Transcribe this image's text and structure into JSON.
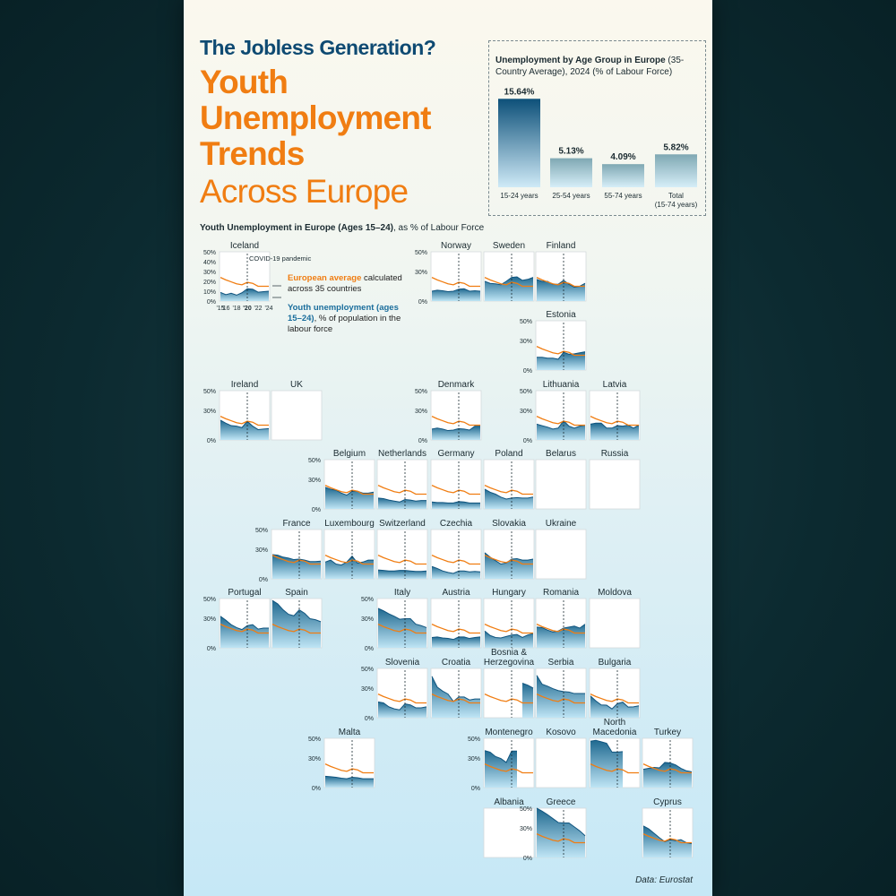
{
  "header": {
    "title": "The Jobless Generation?",
    "headline_lines": [
      "Youth",
      "Unemployment",
      "Trends"
    ],
    "headline_sub": "Across Europe"
  },
  "age_chart": {
    "title_bold": "Unemployment by Age Group in Europe",
    "title_rest": " (35-Country Average), 2024 (% of Labour Force)"
  },
  "map": {
    "title_bold": "Youth Unemployment in Europe",
    "title_paren": " (Ages 15–24)",
    "title_rest": ", as % of Labour Force",
    "covid_label": "COVID-19 pandemic",
    "legend_orange_bold": "European average",
    "legend_orange_rest": " calculated across 35 countries",
    "legend_blue_bold": "Youth unemployment (ages 15–24)",
    "legend_blue_rest": ", % of population in the labour force"
  },
  "credit": "Data: Eurostat",
  "colors": {
    "orange": "#f07d12",
    "navy": "#0e4a72",
    "area_top": "#1f6990",
    "area_bottom": "#bfe5f5"
  },
  "chart_data": [
    {
      "type": "bar",
      "title": "Unemployment by Age Group in Europe (35-Country Average), 2024 (% of Labour Force)",
      "categories": [
        "15-24 years",
        "25-54 years",
        "55-74 years",
        "Total (15-74 years)"
      ],
      "category_lines": [
        [
          "15-24 years"
        ],
        [
          "25-54 years"
        ],
        [
          "55-74 years"
        ],
        [
          "Total",
          "(15-74 years)"
        ]
      ],
      "values": [
        15.64,
        5.13,
        4.09,
        5.82
      ],
      "value_labels": [
        "15.64%",
        "5.13%",
        "4.09%",
        "5.82%"
      ],
      "ylim": [
        0,
        16
      ]
    },
    {
      "type": "area",
      "title": "Youth Unemployment in Europe (Ages 15–24), as % of Labour Force",
      "x": [
        2015,
        2016,
        2017,
        2018,
        2019,
        2020,
        2021,
        2022,
        2023,
        2024
      ],
      "x_tick_labels": [
        "'15",
        "'16",
        "'18",
        "'20",
        "'22",
        "'24"
      ],
      "y_tick_labels": [
        "50%",
        "40%",
        "30%",
        "20%",
        "10%",
        "0%"
      ],
      "y_tick_labels_short": [
        "50%",
        "30%",
        "0%"
      ],
      "ylim": [
        0,
        50
      ],
      "covid_year": 2020,
      "european_average": [
        24.0,
        21.5,
        19.5,
        17.5,
        16.5,
        19.0,
        18.0,
        15.0,
        15.0,
        15.0
      ],
      "countries": [
        {
          "name": "Iceland",
          "values": [
            8.8,
            6.5,
            7.9,
            6.0,
            8.4,
            12.5,
            12.0,
            9.0,
            9.5,
            10.0
          ]
        },
        {
          "name": "Norway",
          "values": [
            10.0,
            11.0,
            10.5,
            9.5,
            10.0,
            12.0,
            12.5,
            10.0,
            10.5,
            10.0
          ]
        },
        {
          "name": "Sweden",
          "values": [
            20.0,
            18.0,
            17.5,
            16.5,
            20.0,
            24.0,
            24.5,
            21.0,
            22.0,
            24.0
          ]
        },
        {
          "name": "Finland",
          "values": [
            22.0,
            20.0,
            20.0,
            17.0,
            17.0,
            21.0,
            17.0,
            14.0,
            15.0,
            18.0
          ]
        },
        {
          "name": "Estonia",
          "values": [
            13.0,
            13.0,
            12.0,
            12.0,
            11.0,
            18.0,
            16.0,
            16.5,
            17.5,
            18.5
          ]
        },
        {
          "name": "Ireland",
          "values": [
            20.0,
            17.0,
            14.5,
            14.0,
            12.5,
            19.0,
            14.0,
            10.5,
            11.0,
            11.5
          ]
        },
        {
          "name": "UK",
          "values": []
        },
        {
          "name": "Denmark",
          "values": [
            11.0,
            12.0,
            11.0,
            9.5,
            10.0,
            11.5,
            11.0,
            10.0,
            14.0,
            14.0
          ]
        },
        {
          "name": "Lithuania",
          "values": [
            16.0,
            14.5,
            13.0,
            11.0,
            12.0,
            19.5,
            14.0,
            12.0,
            14.0,
            15.0
          ]
        },
        {
          "name": "Latvia",
          "values": [
            16.0,
            17.0,
            17.0,
            12.0,
            12.0,
            14.5,
            14.0,
            15.0,
            12.0,
            15.0
          ]
        },
        {
          "name": "Belgium",
          "values": [
            22.0,
            20.0,
            19.0,
            16.0,
            14.0,
            18.0,
            18.0,
            16.0,
            16.0,
            17.0
          ]
        },
        {
          "name": "Netherlands",
          "values": [
            11.0,
            10.5,
            9.0,
            8.0,
            7.0,
            9.5,
            9.0,
            8.0,
            8.5,
            8.5
          ]
        },
        {
          "name": "Germany",
          "values": [
            7.0,
            6.5,
            6.5,
            6.0,
            6.0,
            7.5,
            7.0,
            6.0,
            6.0,
            6.0
          ]
        },
        {
          "name": "Poland",
          "values": [
            20.0,
            17.0,
            15.0,
            12.0,
            10.0,
            11.0,
            11.5,
            11.0,
            11.0,
            12.0
          ]
        },
        {
          "name": "Belarus",
          "values": []
        },
        {
          "name": "Russia",
          "values": []
        },
        {
          "name": "France",
          "values": [
            24.5,
            24.0,
            22.0,
            21.0,
            19.5,
            20.0,
            19.0,
            17.5,
            17.5,
            18.0
          ]
        },
        {
          "name": "Luxembourg",
          "values": [
            17.0,
            19.0,
            15.0,
            14.0,
            17.0,
            23.0,
            16.0,
            17.0,
            19.0,
            19.0
          ]
        },
        {
          "name": "Switzerland",
          "values": [
            9.0,
            8.5,
            8.0,
            8.0,
            8.5,
            8.5,
            8.0,
            7.5,
            7.5,
            8.0
          ]
        },
        {
          "name": "Czechia",
          "values": [
            12.5,
            10.5,
            8.0,
            6.5,
            5.5,
            8.0,
            8.0,
            7.0,
            7.5,
            7.0
          ]
        },
        {
          "name": "Slovakia",
          "values": [
            26.5,
            22.0,
            18.5,
            15.0,
            16.0,
            20.0,
            20.5,
            19.0,
            19.0,
            20.0
          ]
        },
        {
          "name": "Ukraine",
          "values": []
        },
        {
          "name": "Portugal",
          "values": [
            32.0,
            28.0,
            23.5,
            20.5,
            18.5,
            22.5,
            23.5,
            19.0,
            20.0,
            20.0
          ]
        },
        {
          "name": "Spain",
          "values": [
            48.0,
            44.5,
            38.5,
            34.0,
            32.5,
            38.5,
            35.0,
            29.5,
            28.5,
            26.5
          ]
        },
        {
          "name": "Italy",
          "values": [
            40.0,
            37.5,
            34.5,
            32.0,
            29.0,
            29.5,
            29.5,
            24.0,
            22.5,
            20.5
          ]
        },
        {
          "name": "Austria",
          "values": [
            10.5,
            11.0,
            10.0,
            9.5,
            8.5,
            11.0,
            11.0,
            9.5,
            10.5,
            11.0
          ]
        },
        {
          "name": "Hungary",
          "values": [
            17.0,
            12.5,
            10.5,
            10.0,
            11.5,
            13.0,
            13.5,
            10.5,
            13.0,
            14.5
          ]
        },
        {
          "name": "Romania",
          "values": [
            21.0,
            20.5,
            18.0,
            16.0,
            17.0,
            20.0,
            21.0,
            22.0,
            20.0,
            24.0
          ]
        },
        {
          "name": "Moldova",
          "values": []
        },
        {
          "name": "Slovenia",
          "values": [
            16.0,
            15.0,
            11.0,
            9.0,
            8.0,
            14.0,
            13.0,
            10.0,
            10.0,
            11.0
          ]
        },
        {
          "name": "Croatia",
          "values": [
            42.0,
            31.0,
            27.0,
            24.0,
            16.5,
            21.0,
            21.0,
            18.0,
            19.0,
            19.0
          ]
        },
        {
          "name": "Bosnia & Herzegovina",
          "values": [
            null,
            null,
            null,
            null,
            null,
            null,
            null,
            35.0,
            33.0,
            30.0
          ]
        },
        {
          "name": "Serbia",
          "values": [
            43.0,
            34.0,
            32.0,
            29.5,
            27.5,
            26.5,
            26.0,
            24.5,
            24.5,
            24.5
          ]
        },
        {
          "name": "Bulgaria",
          "values": [
            22.0,
            17.0,
            12.9,
            12.7,
            8.9,
            14.2,
            15.8,
            10.8,
            11.0,
            12.0
          ]
        },
        {
          "name": "Malta",
          "values": [
            11.5,
            11.0,
            10.5,
            9.5,
            9.0,
            10.5,
            10.0,
            9.0,
            9.0,
            9.0
          ]
        },
        {
          "name": "Montenegro",
          "values": [
            37.5,
            36.0,
            31.5,
            29.5,
            25.5,
            37.0,
            37.0,
            null,
            null,
            null
          ]
        },
        {
          "name": "Kosovo",
          "values": []
        },
        {
          "name": "North Macedonia",
          "values": [
            47.0,
            48.0,
            46.5,
            45.0,
            36.0,
            36.0,
            36.5,
            null,
            null,
            null
          ]
        },
        {
          "name": "Turkey",
          "values": [
            18.5,
            19.5,
            20.5,
            20.0,
            25.5,
            25.0,
            23.0,
            19.5,
            17.0,
            16.0
          ]
        },
        {
          "name": "Albania",
          "values": []
        },
        {
          "name": "Greece",
          "values": [
            50.0,
            47.0,
            43.5,
            39.5,
            35.5,
            35.0,
            35.0,
            31.0,
            27.0,
            22.0
          ]
        },
        {
          "name": "Cyprus",
          "values": [
            32.0,
            29.0,
            24.5,
            20.0,
            16.0,
            18.0,
            17.0,
            18.0,
            15.0,
            14.0
          ]
        }
      ]
    }
  ]
}
